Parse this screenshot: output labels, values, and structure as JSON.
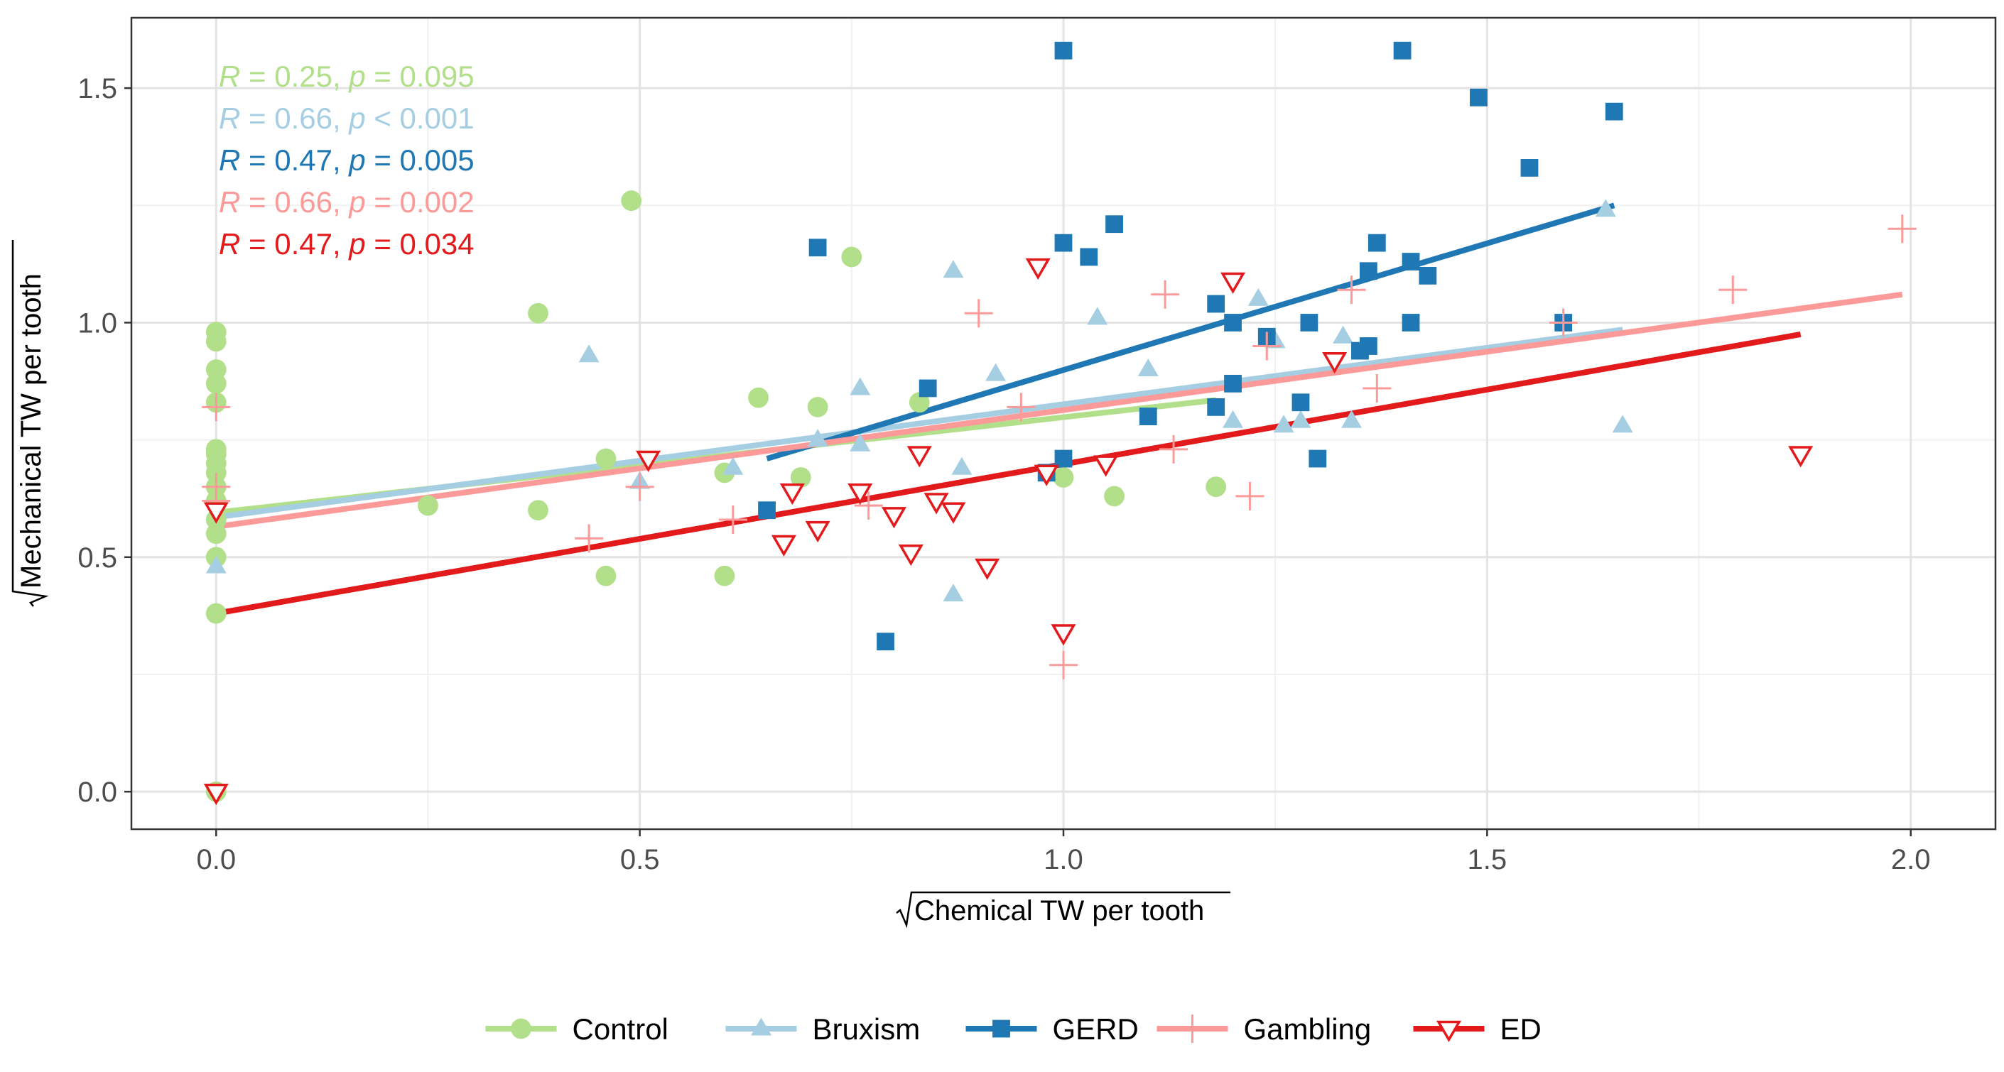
{
  "chart_data": {
    "type": "scatter",
    "xlabel": "Chemical TW per tooth",
    "ylabel": "Mechanical TW per tooth",
    "axis_radical": "√",
    "xlim": [
      -0.1,
      2.1
    ],
    "ylim": [
      -0.08,
      1.65
    ],
    "x_ticks": [
      0.0,
      0.5,
      1.0,
      1.5,
      2.0
    ],
    "x_tick_labels": [
      "0.0",
      "0.5",
      "1.0",
      "1.5",
      "2.0"
    ],
    "y_ticks": [
      0.0,
      0.5,
      1.0,
      1.5
    ],
    "y_tick_labels": [
      "0.0",
      "0.5",
      "1.0",
      "1.5"
    ],
    "grid": true,
    "legend_position": "bottom",
    "series": [
      {
        "name": "Control",
        "color": "#b2df8a",
        "marker": "circle",
        "stat": {
          "r_value": "0.25",
          "p_op": "=",
          "p_value": "0.095"
        },
        "fit": {
          "x": [
            0.0,
            1.18
          ],
          "y": [
            0.595,
            0.835
          ]
        },
        "points": [
          [
            0.0,
            0.98
          ],
          [
            0.0,
            0.96
          ],
          [
            0.0,
            0.9
          ],
          [
            0.0,
            0.87
          ],
          [
            0.0,
            0.83
          ],
          [
            0.0,
            0.73
          ],
          [
            0.0,
            0.72
          ],
          [
            0.0,
            0.7
          ],
          [
            0.0,
            0.68
          ],
          [
            0.0,
            0.65
          ],
          [
            0.0,
            0.62
          ],
          [
            0.0,
            0.58
          ],
          [
            0.0,
            0.55
          ],
          [
            0.0,
            0.5
          ],
          [
            0.0,
            0.38
          ],
          [
            0.0,
            0.0
          ],
          [
            0.25,
            0.61
          ],
          [
            0.38,
            1.02
          ],
          [
            0.38,
            0.6
          ],
          [
            0.46,
            0.71
          ],
          [
            0.46,
            0.46
          ],
          [
            0.49,
            1.26
          ],
          [
            0.6,
            0.46
          ],
          [
            0.6,
            0.68
          ],
          [
            0.64,
            0.84
          ],
          [
            0.69,
            0.67
          ],
          [
            0.71,
            0.82
          ],
          [
            0.75,
            1.14
          ],
          [
            0.83,
            0.83
          ],
          [
            1.0,
            0.67
          ],
          [
            1.06,
            0.63
          ],
          [
            1.18,
            0.65
          ]
        ]
      },
      {
        "name": "Bruxism",
        "color": "#a6cee3",
        "marker": "triangle",
        "stat": {
          "r_value": "0.66",
          "p_op": "<",
          "p_value": "0.001"
        },
        "fit": {
          "x": [
            0.0,
            1.66
          ],
          "y": [
            0.585,
            0.985
          ]
        },
        "points": [
          [
            0.0,
            0.48
          ],
          [
            0.44,
            0.93
          ],
          [
            0.5,
            0.66
          ],
          [
            0.61,
            0.69
          ],
          [
            0.71,
            0.75
          ],
          [
            0.76,
            0.74
          ],
          [
            0.76,
            0.86
          ],
          [
            0.87,
            1.11
          ],
          [
            0.87,
            0.42
          ],
          [
            0.88,
            0.69
          ],
          [
            0.92,
            0.89
          ],
          [
            1.04,
            1.01
          ],
          [
            1.1,
            0.9
          ],
          [
            1.2,
            0.79
          ],
          [
            1.23,
            1.05
          ],
          [
            1.25,
            0.96
          ],
          [
            1.26,
            0.78
          ],
          [
            1.28,
            0.79
          ],
          [
            1.33,
            0.97
          ],
          [
            1.34,
            0.79
          ],
          [
            1.64,
            1.24
          ],
          [
            1.66,
            0.78
          ]
        ]
      },
      {
        "name": "GERD",
        "color": "#1f78b4",
        "marker": "square",
        "stat": {
          "r_value": "0.47",
          "p_op": "=",
          "p_value": "0.005"
        },
        "fit": {
          "x": [
            0.65,
            1.65
          ],
          "y": [
            0.71,
            1.25
          ]
        },
        "points": [
          [
            0.65,
            0.6
          ],
          [
            0.71,
            1.16
          ],
          [
            0.79,
            0.32
          ],
          [
            0.84,
            0.86
          ],
          [
            0.98,
            0.68
          ],
          [
            1.0,
            1.58
          ],
          [
            1.0,
            1.17
          ],
          [
            1.0,
            0.71
          ],
          [
            1.03,
            1.14
          ],
          [
            1.06,
            1.21
          ],
          [
            1.1,
            0.8
          ],
          [
            1.18,
            1.04
          ],
          [
            1.18,
            0.82
          ],
          [
            1.2,
            1.0
          ],
          [
            1.2,
            0.87
          ],
          [
            1.24,
            0.97
          ],
          [
            1.28,
            0.83
          ],
          [
            1.29,
            1.0
          ],
          [
            1.3,
            0.71
          ],
          [
            1.35,
            0.94
          ],
          [
            1.36,
            0.95
          ],
          [
            1.36,
            1.11
          ],
          [
            1.37,
            1.17
          ],
          [
            1.4,
            1.58
          ],
          [
            1.41,
            1.13
          ],
          [
            1.41,
            1.0
          ],
          [
            1.43,
            1.1
          ],
          [
            1.49,
            1.48
          ],
          [
            1.55,
            1.33
          ],
          [
            1.59,
            1.0
          ],
          [
            1.65,
            1.45
          ]
        ]
      },
      {
        "name": "Gambling",
        "color": "#fb9a99",
        "marker": "plus",
        "stat": {
          "r_value": "0.66",
          "p_op": "=",
          "p_value": "0.002"
        },
        "fit": {
          "x": [
            0.0,
            1.99
          ],
          "y": [
            0.565,
            1.06
          ]
        },
        "points": [
          [
            0.0,
            0.82
          ],
          [
            0.0,
            0.65
          ],
          [
            0.0,
            0.62
          ],
          [
            0.44,
            0.54
          ],
          [
            0.5,
            0.65
          ],
          [
            0.61,
            0.58
          ],
          [
            0.77,
            0.61
          ],
          [
            0.9,
            1.02
          ],
          [
            0.95,
            0.82
          ],
          [
            1.0,
            0.27
          ],
          [
            1.12,
            1.06
          ],
          [
            1.13,
            0.73
          ],
          [
            1.22,
            0.63
          ],
          [
            1.24,
            0.95
          ],
          [
            1.34,
            1.07
          ],
          [
            1.37,
            0.86
          ],
          [
            1.59,
            1.0
          ],
          [
            1.79,
            1.07
          ],
          [
            1.99,
            1.2
          ]
        ]
      },
      {
        "name": "ED",
        "color": "#e31a1c",
        "marker": "triangle-down",
        "stat": {
          "r_value": "0.47",
          "p_op": "=",
          "p_value": "0.034"
        },
        "fit": {
          "x": [
            0.0,
            1.87
          ],
          "y": [
            0.38,
            0.975
          ]
        },
        "points": [
          [
            0.0,
            0.0
          ],
          [
            0.0,
            0.6
          ],
          [
            0.51,
            0.71
          ],
          [
            0.67,
            0.53
          ],
          [
            0.68,
            0.64
          ],
          [
            0.71,
            0.56
          ],
          [
            0.76,
            0.64
          ],
          [
            0.8,
            0.59
          ],
          [
            0.82,
            0.51
          ],
          [
            0.83,
            0.72
          ],
          [
            0.85,
            0.62
          ],
          [
            0.87,
            0.6
          ],
          [
            0.91,
            0.48
          ],
          [
            0.97,
            1.12
          ],
          [
            0.98,
            0.68
          ],
          [
            1.0,
            0.34
          ],
          [
            1.05,
            0.7
          ],
          [
            1.2,
            1.09
          ],
          [
            1.32,
            0.92
          ],
          [
            1.87,
            0.72
          ]
        ]
      }
    ]
  }
}
